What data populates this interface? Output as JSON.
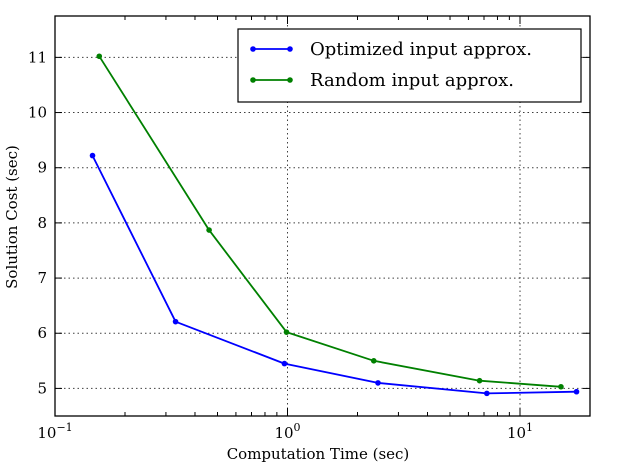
{
  "chart_data": {
    "type": "line",
    "title": "",
    "xlabel": "Computation Time (sec)",
    "ylabel": "Solution Cost (sec)",
    "xscale": "log",
    "xlim": [
      0.1,
      20
    ],
    "ylim": [
      4.5,
      11.75
    ],
    "grid": true,
    "legend_position": "top-right",
    "x_ticks": [
      {
        "base": "10",
        "exp": "−1",
        "value": 0.1
      },
      {
        "base": "10",
        "exp": "0",
        "value": 1
      },
      {
        "base": "10",
        "exp": "1",
        "value": 10
      }
    ],
    "y_ticks": [
      5,
      6,
      7,
      8,
      9,
      10,
      11
    ],
    "series": [
      {
        "name": "Optimized input approx.",
        "color": "#0000ff",
        "x": [
          0.145,
          0.33,
          0.97,
          2.45,
          7.2,
          17.5
        ],
        "y": [
          9.22,
          6.21,
          5.45,
          5.1,
          4.91,
          4.94
        ]
      },
      {
        "name": "Random input approx.",
        "color": "#008000",
        "x": [
          0.155,
          0.46,
          0.99,
          2.35,
          6.7,
          15.0
        ],
        "y": [
          11.02,
          7.87,
          6.02,
          5.5,
          5.14,
          5.03
        ]
      }
    ]
  }
}
